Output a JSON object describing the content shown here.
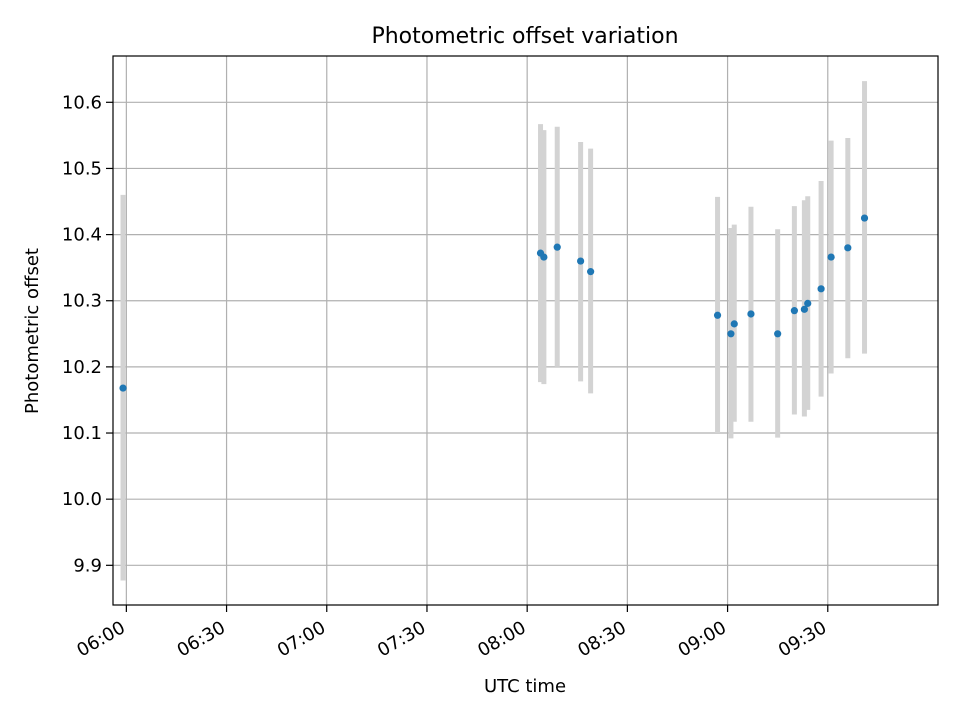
{
  "chart_data": {
    "type": "scatter",
    "title": "Photometric offset variation",
    "xlabel": "UTC time",
    "ylabel": "Photometric offset",
    "x_ticks": [
      "06:00",
      "06:30",
      "07:00",
      "07:30",
      "08:00",
      "08:30",
      "09:00",
      "09:30"
    ],
    "y_ticks": [
      "9.9",
      "10.0",
      "10.1",
      "10.2",
      "10.3",
      "10.4",
      "10.5",
      "10.6"
    ],
    "xlim": [
      "05:56",
      "10:03"
    ],
    "ylim": [
      9.84,
      10.67
    ],
    "grid": true,
    "colors": {
      "points": "#1f77b4",
      "error_bars": "#d3d3d3"
    },
    "series": [
      {
        "points": [
          {
            "t": "05:59",
            "y": 10.168,
            "lo": 9.877,
            "hi": 10.46
          },
          {
            "t": "08:04",
            "y": 10.372,
            "lo": 10.177,
            "hi": 10.567
          },
          {
            "t": "08:05",
            "y": 10.366,
            "lo": 10.174,
            "hi": 10.558
          },
          {
            "t": "08:09",
            "y": 10.381,
            "lo": 10.2,
            "hi": 10.563
          },
          {
            "t": "08:16",
            "y": 10.36,
            "lo": 10.178,
            "hi": 10.54
          },
          {
            "t": "08:19",
            "y": 10.344,
            "lo": 10.16,
            "hi": 10.53
          },
          {
            "t": "08:57",
            "y": 10.278,
            "lo": 10.1,
            "hi": 10.457
          },
          {
            "t": "09:01",
            "y": 10.25,
            "lo": 10.092,
            "hi": 10.41
          },
          {
            "t": "09:02",
            "y": 10.265,
            "lo": 10.117,
            "hi": 10.415
          },
          {
            "t": "09:07",
            "y": 10.28,
            "lo": 10.117,
            "hi": 10.442
          },
          {
            "t": "09:15",
            "y": 10.25,
            "lo": 10.093,
            "hi": 10.408
          },
          {
            "t": "09:20",
            "y": 10.285,
            "lo": 10.128,
            "hi": 10.443
          },
          {
            "t": "09:23",
            "y": 10.287,
            "lo": 10.125,
            "hi": 10.452
          },
          {
            "t": "09:24",
            "y": 10.296,
            "lo": 10.135,
            "hi": 10.458
          },
          {
            "t": "09:28",
            "y": 10.318,
            "lo": 10.155,
            "hi": 10.481
          },
          {
            "t": "09:31",
            "y": 10.366,
            "lo": 10.19,
            "hi": 10.542
          },
          {
            "t": "09:36",
            "y": 10.38,
            "lo": 10.213,
            "hi": 10.546
          },
          {
            "t": "09:41",
            "y": 10.425,
            "lo": 10.22,
            "hi": 10.632
          }
        ]
      }
    ]
  }
}
